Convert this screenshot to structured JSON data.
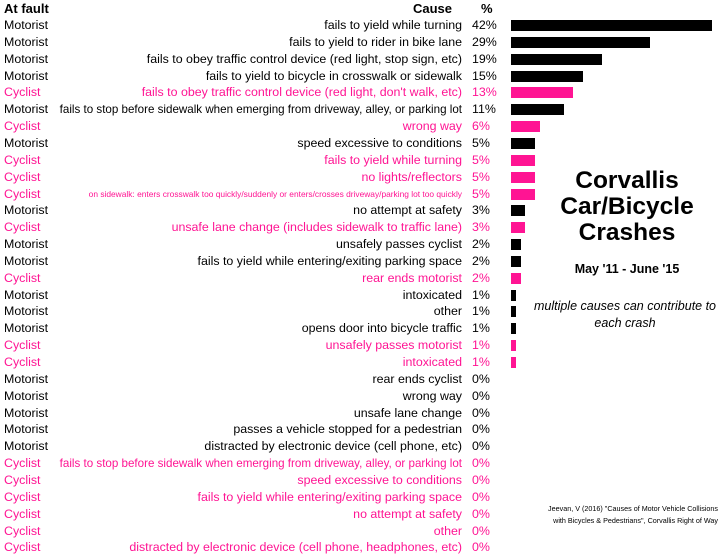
{
  "chart_data": {
    "type": "bar",
    "orientation": "horizontal",
    "title": "Corvallis Car/Bicycle Crashes",
    "subtitle": "May '11 - June '15",
    "note": "multiple causes can contribute to each crash",
    "source": "Jeevan, V (2016) \"Causes of Motor Vehicle Collisions with Bicycles & Pedestrians\", Corvallis Right of Way",
    "headers": {
      "fault": "At fault",
      "cause": "Cause",
      "pct": "%"
    },
    "colors": {
      "Motorist": "#000000",
      "Cyclist": "#ff1493"
    },
    "xlim": [
      0,
      42
    ],
    "rows": [
      {
        "fault": "Motorist",
        "cause": "fails to yield while turning",
        "value": 42
      },
      {
        "fault": "Motorist",
        "cause": "fails to yield to rider in bike lane",
        "value": 29
      },
      {
        "fault": "Motorist",
        "cause": "fails to obey traffic control device (red light, stop sign, etc)",
        "value": 19
      },
      {
        "fault": "Motorist",
        "cause": "fails to yield to bicycle in crosswalk or sidewalk",
        "value": 15
      },
      {
        "fault": "Cyclist",
        "cause": "fails to obey traffic control device (red light, don't walk, etc)",
        "value": 13
      },
      {
        "fault": "Motorist",
        "cause": "fails to stop before sidewalk when emerging from driveway, alley, or parking lot",
        "value": 11
      },
      {
        "fault": "Cyclist",
        "cause": "wrong way",
        "value": 6
      },
      {
        "fault": "Motorist",
        "cause": "speed excessive to conditions",
        "value": 5
      },
      {
        "fault": "Cyclist",
        "cause": "fails to yield while turning",
        "value": 5
      },
      {
        "fault": "Cyclist",
        "cause": "no lights/reflectors",
        "value": 5
      },
      {
        "fault": "Cyclist",
        "cause": "on sidewalk: enters crosswalk too quickly/suddenly or enters/crosses driveway/parking lot too quickly",
        "value": 5
      },
      {
        "fault": "Motorist",
        "cause": "no attempt at safety",
        "value": 3
      },
      {
        "fault": "Cyclist",
        "cause": "unsafe lane change (includes sidewalk to traffic lane)",
        "value": 3
      },
      {
        "fault": "Motorist",
        "cause": "unsafely passes cyclist",
        "value": 2
      },
      {
        "fault": "Motorist",
        "cause": "fails to yield while entering/exiting parking space",
        "value": 2
      },
      {
        "fault": "Cyclist",
        "cause": "rear ends motorist",
        "value": 2
      },
      {
        "fault": "Motorist",
        "cause": "intoxicated",
        "value": 1
      },
      {
        "fault": "Motorist",
        "cause": "other",
        "value": 1
      },
      {
        "fault": "Motorist",
        "cause": "opens door into bicycle traffic",
        "value": 1
      },
      {
        "fault": "Cyclist",
        "cause": "unsafely passes motorist",
        "value": 1
      },
      {
        "fault": "Cyclist",
        "cause": "intoxicated",
        "value": 1
      },
      {
        "fault": "Motorist",
        "cause": "rear ends cyclist",
        "value": 0
      },
      {
        "fault": "Motorist",
        "cause": "wrong way",
        "value": 0
      },
      {
        "fault": "Motorist",
        "cause": "unsafe lane change",
        "value": 0
      },
      {
        "fault": "Motorist",
        "cause": "passes a vehicle stopped for a pedestrian",
        "value": 0
      },
      {
        "fault": "Motorist",
        "cause": "distracted by electronic device (cell phone, etc)",
        "value": 0
      },
      {
        "fault": "Cyclist",
        "cause": "fails to stop before sidewalk when emerging from driveway, alley, or parking lot",
        "value": 0
      },
      {
        "fault": "Cyclist",
        "cause": "speed excessive to conditions",
        "value": 0
      },
      {
        "fault": "Cyclist",
        "cause": "fails to yield while entering/exiting parking space",
        "value": 0
      },
      {
        "fault": "Cyclist",
        "cause": "no attempt at safety",
        "value": 0
      },
      {
        "fault": "Cyclist",
        "cause": "other",
        "value": 0
      },
      {
        "fault": "Cyclist",
        "cause": "distracted by electronic device (cell phone, headphones, etc)",
        "value": 0
      }
    ]
  }
}
